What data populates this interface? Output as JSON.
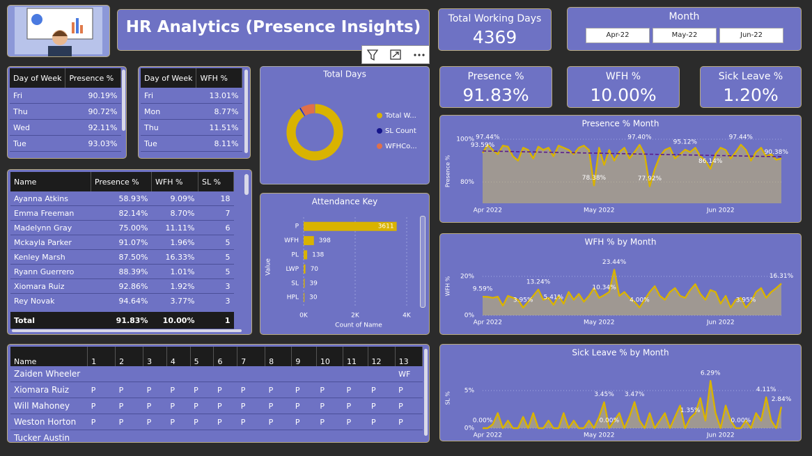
{
  "header": {
    "title": "HR Analytics (Presence Insights)"
  },
  "kpis": [
    {
      "label": "Total Working Days",
      "value": "4369"
    },
    {
      "label": "Presence %",
      "value": "91.83%"
    },
    {
      "label": "WFH %",
      "value": "10.00%"
    },
    {
      "label": "Sick Leave %",
      "value": "1.20%"
    }
  ],
  "month_slicer": {
    "title": "Month",
    "options": [
      "Apr-22",
      "May-22",
      "Jun-22"
    ]
  },
  "day_presence_table": {
    "columns": [
      "Day of Week",
      "Presence %"
    ],
    "rows": [
      [
        "Fri",
        "90.19%"
      ],
      [
        "Thu",
        "90.72%"
      ],
      [
        "Wed",
        "92.11%"
      ],
      [
        "Tue",
        "93.03%"
      ]
    ]
  },
  "day_wfh_table": {
    "columns": [
      "Day of Week",
      "WFH %"
    ],
    "rows": [
      [
        "Fri",
        "13.01%"
      ],
      [
        "Mon",
        "8.77%"
      ],
      [
        "Thu",
        "11.51%"
      ],
      [
        "Tue",
        "8.11%"
      ]
    ]
  },
  "employee_table": {
    "columns": [
      "Name",
      "Presence %",
      "WFH %",
      "SL %"
    ],
    "rows": [
      [
        "Ayanna Atkins",
        "58.93%",
        "9.09%",
        "18"
      ],
      [
        "Emma Freeman",
        "82.14%",
        "8.70%",
        "7"
      ],
      [
        "Madelynn Gray",
        "75.00%",
        "11.11%",
        "6"
      ],
      [
        "Mckayla Parker",
        "91.07%",
        "1.96%",
        "5"
      ],
      [
        "Kenley Marsh",
        "87.50%",
        "16.33%",
        "5"
      ],
      [
        "Ryann Guerrero",
        "88.39%",
        "1.01%",
        "5"
      ],
      [
        "Xiomara Ruiz",
        "92.86%",
        "1.92%",
        "3"
      ],
      [
        "Rey Novak",
        "94.64%",
        "3.77%",
        "3"
      ]
    ],
    "total": [
      "Total",
      "91.83%",
      "10.00%",
      "1"
    ]
  },
  "attendance_table": {
    "columns": [
      "Name",
      "1",
      "2",
      "3",
      "4",
      "5",
      "6",
      "7",
      "8",
      "9",
      "10",
      "11",
      "12",
      "13"
    ],
    "rows": [
      [
        "Zaiden Wheeler",
        null,
        null,
        null,
        null,
        null,
        null,
        null,
        null,
        null,
        null,
        null,
        null,
        "WF"
      ],
      [
        "Xiomara Ruiz",
        "P",
        "P",
        "P",
        "P",
        "P",
        "P",
        "P",
        "P",
        "P",
        "P",
        "P",
        "P",
        "P"
      ],
      [
        "Will Mahoney",
        "P",
        "P",
        "P",
        "P",
        "P",
        "P",
        "P",
        "P",
        "P",
        "P",
        "P",
        "P",
        "P"
      ],
      [
        "Weston Horton",
        "P",
        "P",
        "P",
        "P",
        "P",
        "P",
        "P",
        "P",
        "P",
        "P",
        "P",
        "P",
        "P"
      ],
      [
        "Tucker Austin"
      ]
    ]
  },
  "chart_data": [
    {
      "type": "pie",
      "donut": true,
      "title": "Total Days",
      "categories": [
        "Total W...",
        "SL Count",
        "WFHCo..."
      ],
      "values": [
        4369,
        39,
        398
      ],
      "colors": [
        "#d9b300",
        "#14148a",
        "#e0704a"
      ]
    },
    {
      "type": "bar",
      "title": "Attendance Key",
      "categories": [
        "P",
        "WFH",
        "PL",
        "LWP",
        "SL",
        "HPL"
      ],
      "values": [
        3611,
        398,
        138,
        70,
        39,
        30
      ],
      "color": "#d9b300",
      "xlim": [
        0,
        4000
      ],
      "xticks": [
        {
          "value": 0,
          "label": "0K"
        },
        {
          "value": 2000,
          "label": "2K"
        },
        {
          "value": 4000,
          "label": "4K"
        }
      ],
      "xlabel": "Count of Name",
      "ylabel": "Value",
      "grid": true
    },
    {
      "type": "area",
      "title": "Presence % Month",
      "ylabel": "Presence %",
      "color": "#d9b300",
      "values": [
        93.59,
        97.44,
        95,
        93,
        97,
        96.5,
        92,
        90,
        96,
        95,
        91,
        96.5,
        95,
        96,
        92,
        97,
        96,
        95,
        93,
        96,
        97,
        95,
        78.38,
        96,
        88,
        95,
        90,
        94,
        96,
        91,
        94,
        97.4,
        93,
        77.92,
        86,
        92,
        95,
        96,
        91,
        93,
        95.12,
        94,
        96,
        92,
        90,
        86.14,
        93,
        96,
        95,
        91,
        94,
        97.44,
        95,
        90,
        94,
        96,
        92,
        93,
        90.38,
        91
      ],
      "value_labels": [
        "93.59%",
        "97.44%",
        null,
        null,
        null,
        null,
        null,
        null,
        null,
        null,
        null,
        null,
        null,
        null,
        null,
        null,
        null,
        null,
        null,
        null,
        null,
        null,
        "78.38%",
        null,
        null,
        null,
        null,
        null,
        null,
        null,
        null,
        "97.40%",
        null,
        "77.92%",
        null,
        null,
        null,
        null,
        null,
        null,
        "95.12%",
        null,
        null,
        null,
        null,
        "86.14%",
        null,
        null,
        null,
        null,
        null,
        "97.44%",
        null,
        null,
        null,
        null,
        null,
        null,
        "90.38%",
        null
      ],
      "trend": [
        94.5,
        91.8
      ],
      "trend_color": "#5a1a8c",
      "xlim": [
        0,
        59
      ],
      "xticks": [
        {
          "value": 1,
          "label": "Apr 2022"
        },
        {
          "value": 23,
          "label": "May 2022"
        },
        {
          "value": 47,
          "label": "Jun 2022"
        }
      ],
      "ylim": [
        70,
        100
      ],
      "yticks": [
        {
          "value": 80,
          "label": "80%"
        },
        {
          "value": 100,
          "label": "100%"
        }
      ],
      "grid": true
    },
    {
      "type": "area",
      "title": "WFH % by Month",
      "ylabel": "WFH %",
      "color": "#d9b300",
      "values": [
        9.59,
        9.5,
        9,
        9.6,
        5,
        10,
        9,
        8,
        3.95,
        7,
        10,
        13.24,
        8,
        9,
        5.41,
        10,
        6,
        12,
        8,
        11,
        7,
        10,
        14,
        9,
        10.34,
        12,
        23.44,
        10,
        12,
        9,
        7,
        4.0,
        8,
        12,
        15,
        10,
        8,
        12,
        14,
        10,
        9,
        13,
        16,
        11,
        8,
        13,
        12,
        6,
        10,
        4,
        8,
        9,
        3.95,
        7,
        12,
        14,
        9,
        12,
        14,
        16.31
      ],
      "value_labels": [
        "9.59%",
        null,
        null,
        null,
        null,
        null,
        null,
        null,
        "3.95%",
        null,
        null,
        "13.24%",
        null,
        null,
        "5.41%",
        null,
        null,
        null,
        null,
        null,
        null,
        null,
        null,
        null,
        "10.34%",
        null,
        "23.44%",
        null,
        null,
        null,
        null,
        "4.00%",
        null,
        null,
        null,
        null,
        null,
        null,
        null,
        null,
        null,
        null,
        null,
        null,
        null,
        null,
        null,
        null,
        null,
        null,
        null,
        null,
        "3.95%",
        null,
        null,
        null,
        null,
        null,
        null,
        "16.31%"
      ],
      "xlim": [
        0,
        59
      ],
      "xticks": [
        {
          "value": 1,
          "label": "Apr 2022"
        },
        {
          "value": 23,
          "label": "May 2022"
        },
        {
          "value": 47,
          "label": "Jun 2022"
        }
      ],
      "ylim": [
        0,
        30
      ],
      "yticks": [
        {
          "value": 0,
          "label": "0%"
        },
        {
          "value": 20,
          "label": "20%"
        }
      ],
      "grid": true
    },
    {
      "type": "area",
      "title": "Sick Leave % by Month",
      "ylabel": "SL %",
      "color": "#d9b300",
      "values": [
        0,
        0,
        0.5,
        2,
        0,
        1,
        0,
        0,
        1.5,
        0,
        2,
        0,
        0,
        1,
        0,
        0,
        2,
        0,
        1,
        0,
        0,
        1,
        0,
        1.5,
        3.45,
        0,
        1,
        2,
        0,
        1.5,
        3.47,
        1,
        0,
        2,
        0,
        1,
        2,
        0,
        1.5,
        3,
        0,
        1.35,
        2,
        4,
        1,
        6.29,
        2,
        0,
        3,
        1,
        0,
        0,
        1,
        0,
        2,
        1,
        4.11,
        1,
        0,
        2.84
      ],
      "value_labels": [
        "0.00%",
        null,
        null,
        null,
        null,
        null,
        null,
        null,
        null,
        null,
        null,
        null,
        null,
        null,
        null,
        null,
        null,
        null,
        null,
        null,
        null,
        null,
        null,
        null,
        "3.45%",
        "0.00%",
        null,
        null,
        null,
        null,
        "3.47%",
        null,
        null,
        null,
        null,
        null,
        null,
        null,
        null,
        null,
        null,
        "1.35%",
        null,
        null,
        null,
        "6.29%",
        null,
        null,
        null,
        null,
        null,
        "0.00%",
        null,
        null,
        null,
        null,
        "4.11%",
        null,
        null,
        "2.84%"
      ],
      "xlim": [
        0,
        59
      ],
      "xticks": [
        {
          "value": 1,
          "label": "Apr 2022"
        },
        {
          "value": 23,
          "label": "May 2022"
        },
        {
          "value": 47,
          "label": "Jun 2022"
        }
      ],
      "ylim": [
        0,
        8
      ],
      "yticks": [
        {
          "value": 0,
          "label": "0%"
        },
        {
          "value": 5,
          "label": "5%"
        }
      ],
      "grid": true
    }
  ]
}
